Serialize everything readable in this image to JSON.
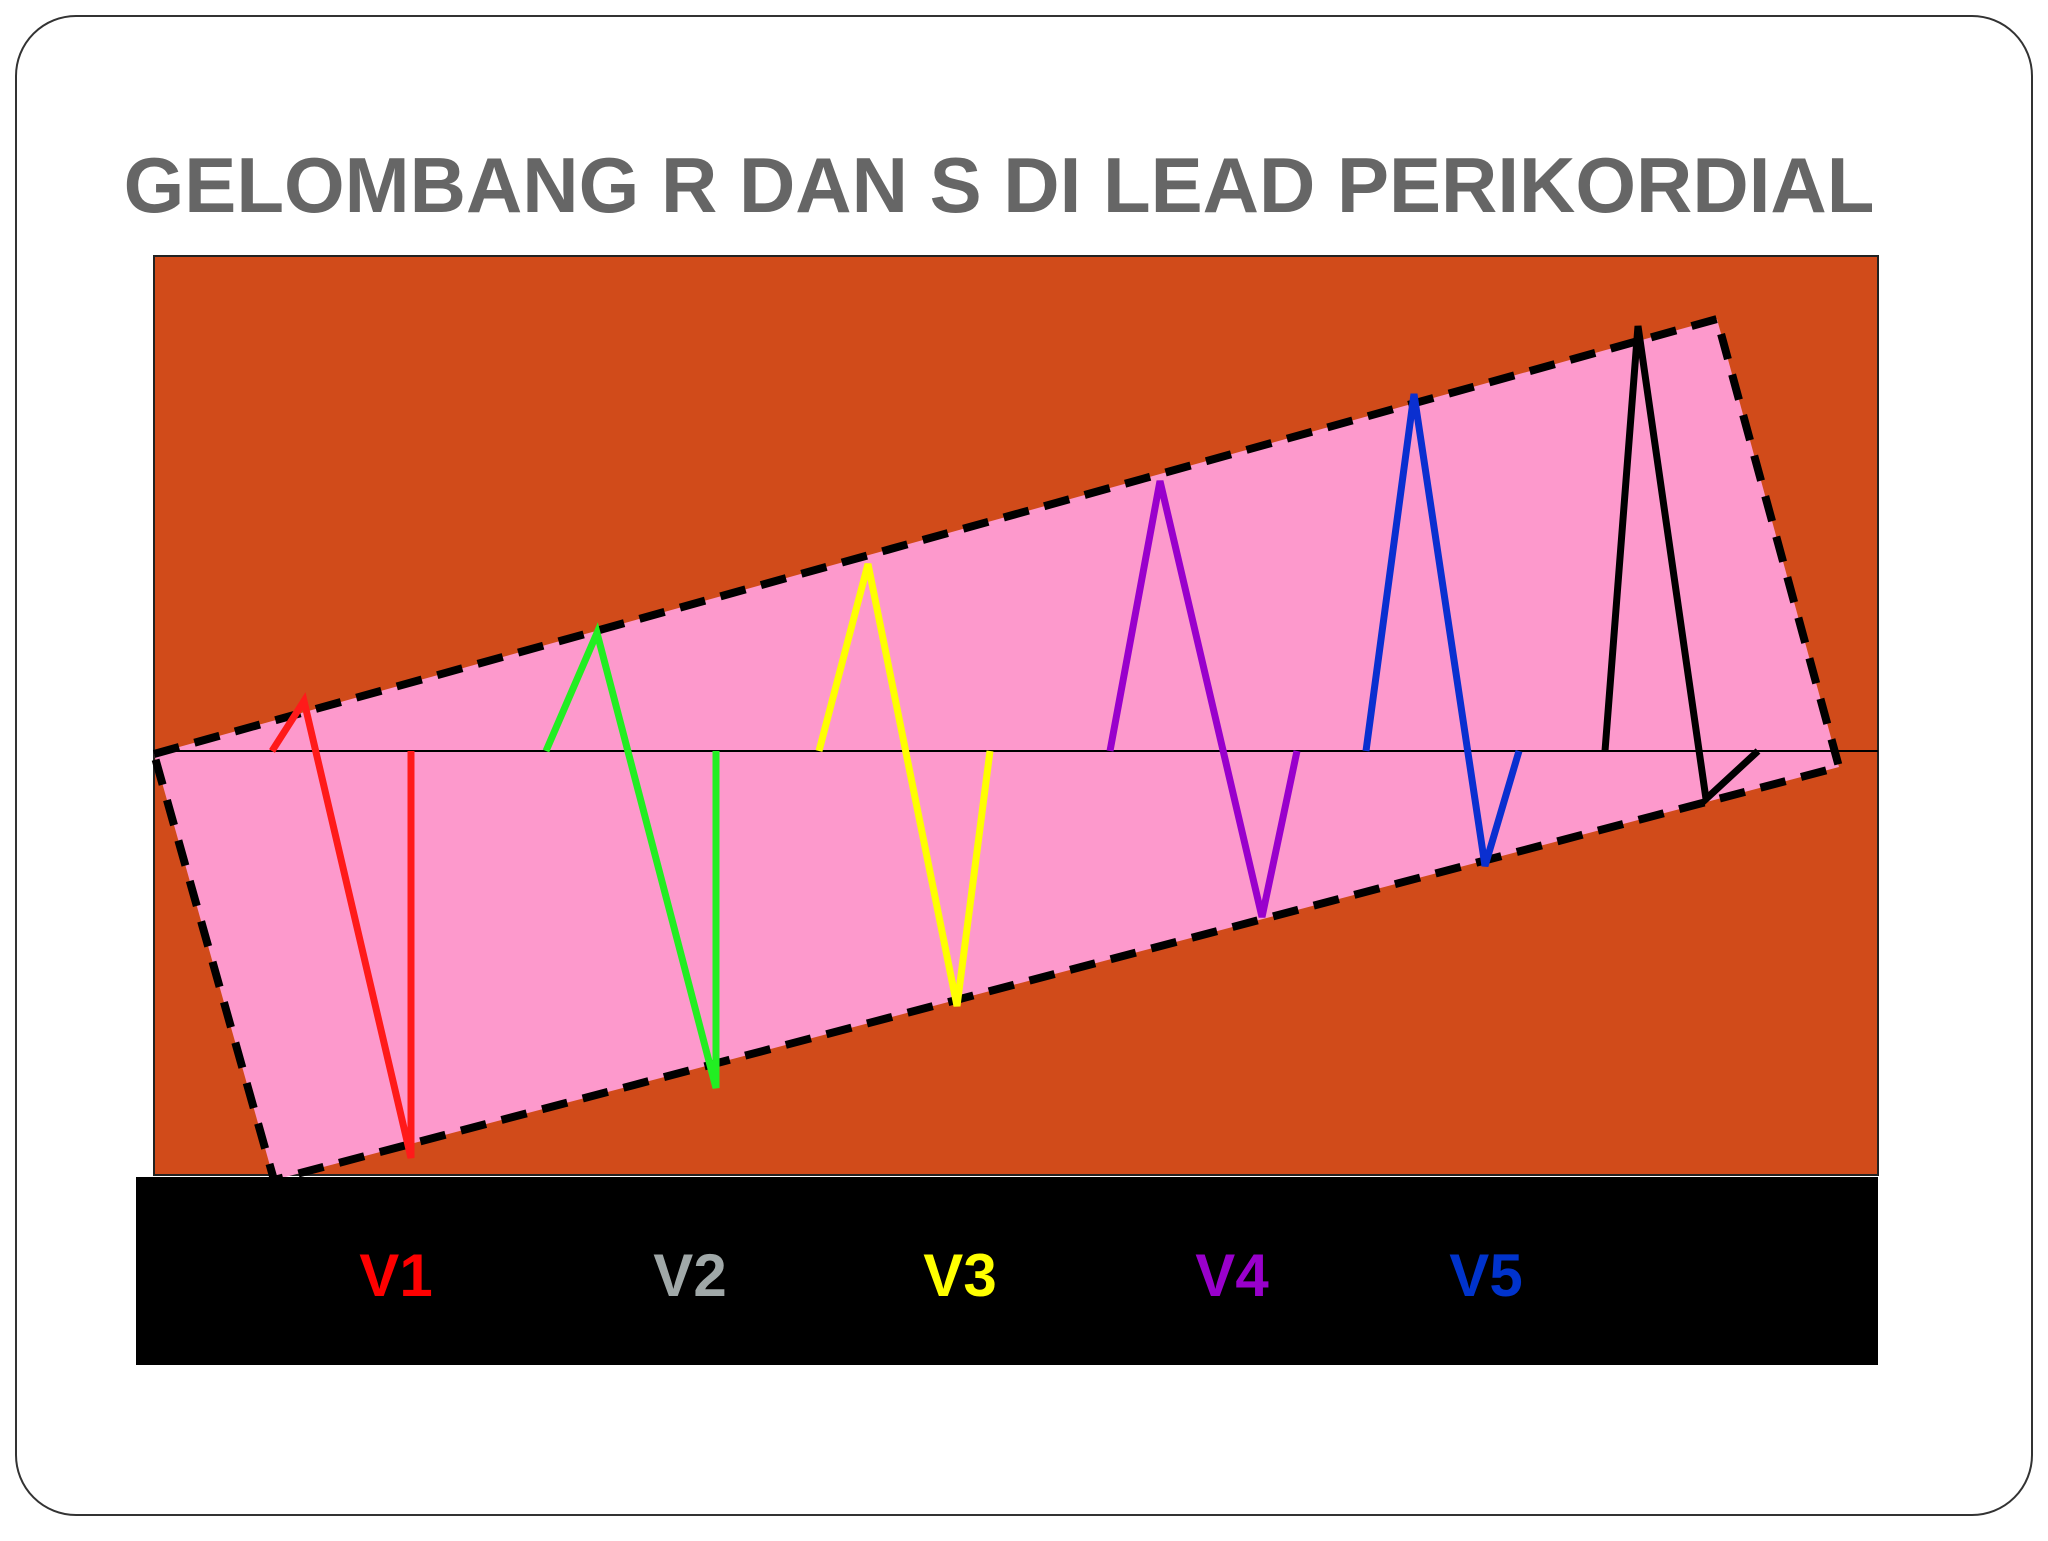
{
  "title": "GELOMBANG R DAN S DI LEAD PERIKORDIAL",
  "leads": [
    {
      "label": "V1"
    },
    {
      "label": "V2"
    },
    {
      "label": "V3"
    },
    {
      "label": "V4"
    },
    {
      "label": "V5"
    }
  ]
}
